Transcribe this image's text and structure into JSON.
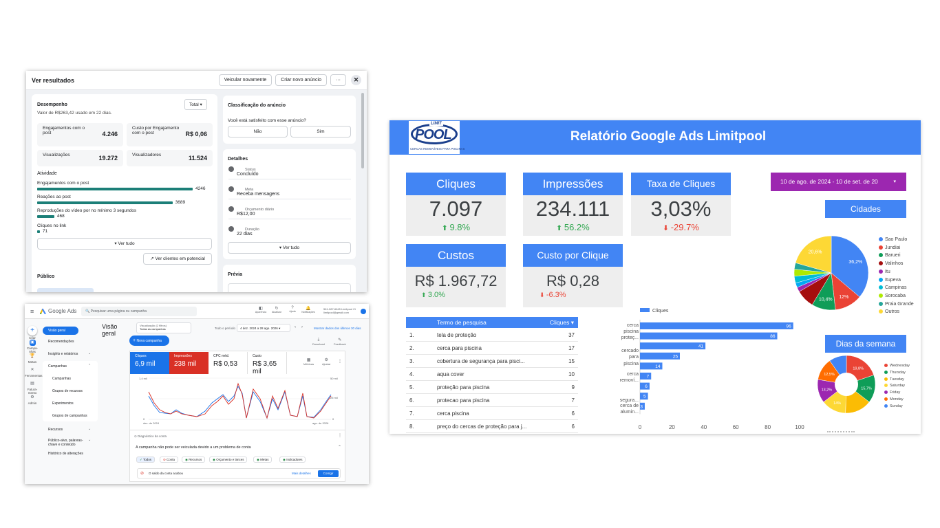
{
  "meta_panel": {
    "title": "Ver resultados",
    "buttons": {
      "run_again": "Veicular novamente",
      "create_ad": "Criar novo anúncio",
      "more": "···",
      "close": "✕"
    },
    "performance": {
      "title": "Desempenho",
      "subtitle": "Valor de R$263,42 usado em 22 dias.",
      "dropdown": "Total",
      "metrics": [
        {
          "label": "Engajamentos com o post",
          "value": "4.246"
        },
        {
          "label": "Custo por Engajamento com o post",
          "value": "R$ 0,06"
        },
        {
          "label": "Visualizações",
          "value": "19.272"
        },
        {
          "label": "Visualizadores",
          "value": "11.524"
        }
      ],
      "activity_title": "Atividade",
      "activity": [
        {
          "label": "Engajamentos com o post",
          "value": "4246",
          "frac": 1.0
        },
        {
          "label": "Reações ao post",
          "value": "3689",
          "frac": 0.87
        },
        {
          "label": "Reproduções do vídeo por no mínimo 3 segundos",
          "value": "468",
          "frac": 0.11
        },
        {
          "label": "Cliques no link",
          "value": "71",
          "frac": 0.017
        }
      ],
      "see_all": "Ver tudo",
      "potential_clients": "Ver clientes em potencial",
      "audience_title": "Público"
    },
    "classification": {
      "title": "Classificação do anúncio",
      "question": "Você está satisfeito com esse anúncio?",
      "no": "Não",
      "yes": "Sim"
    },
    "details": {
      "title": "Detalhes",
      "rows": [
        {
          "label": "Status",
          "value": "Concluído"
        },
        {
          "label": "Meta",
          "value": "Receba mensagens"
        },
        {
          "label": "Orçamento diário",
          "value": "R$12,00"
        },
        {
          "label": "Duração",
          "value": "22 dias"
        }
      ],
      "see_all": "Ver tudo",
      "preview_title": "Prévia"
    }
  },
  "gads_panel": {
    "app_name": "Google Ads",
    "search_placeholder": "Pesquisar uma página ou campanha",
    "top_icons": [
      "Aparência",
      "Atualizar",
      "Ajuda",
      "Notificações"
    ],
    "account": "561-087-6645 Limitpool Ci limitpool@gmail.com",
    "nav": [
      {
        "label": "Criar",
        "icon": "plus-icon"
      },
      {
        "label": "Campa-nhas",
        "icon": "campaign-icon"
      },
      {
        "label": "Metas",
        "icon": "trophy-icon"
      },
      {
        "label": "Ferramentas",
        "icon": "tools-icon"
      },
      {
        "label": "Fatura-mento",
        "icon": "billing-icon"
      },
      {
        "label": "Admin",
        "icon": "admin-icon"
      }
    ],
    "sidebar": [
      "Visão geral",
      "Recomendações",
      "Insights e relatórios",
      "Campanhas",
      "Campanhas",
      "Grupos de recursos",
      "Experimentos",
      "Grupos de campanhas",
      "Recursos",
      "Público-alvo, palavras-chave e conteúdo",
      "Histórico de alterações"
    ],
    "header": {
      "title": "Visão geral",
      "view_label": "Visualização (2 filtros)",
      "view_value": "Todas as campanhas",
      "period_label": "Todo o período",
      "period": "4 dez. 2024 a 28 ago. 2026",
      "show_last": "Mostrar dados dos últimos 30 dias",
      "new_campaign": "Nova campanha",
      "download": "Download",
      "feedback": "Feedback"
    },
    "metrics": [
      {
        "label": "Cliques",
        "value": "6,9 mil",
        "color": "#1a73e8"
      },
      {
        "label": "Impressões",
        "value": "238 mil",
        "color": "#d93025"
      },
      {
        "label": "CPC méd.",
        "value": "R$ 0,53",
        "color": "#ffffff"
      },
      {
        "label": "Custo",
        "value": "R$ 3,65 mil",
        "color": "#ffffff"
      }
    ],
    "metric_actions": [
      "Métricas",
      "Ajustar"
    ],
    "chart_axes": {
      "left_top": "1,4 mil",
      "left_bottom": "0",
      "right_top": "50 mil",
      "right_mid": "25 mil",
      "right_bottom": "0",
      "x_start": "dez. de 2024",
      "x_end": "ago. de 2026"
    },
    "diag": {
      "title": "Diagnóstico da conta",
      "message": "A campanha não pode ser veiculada devido a um problema de conta",
      "chips": [
        "Todos",
        "Conta",
        "Recursos",
        "Orçamento e lances",
        "Metas",
        "Indicadores"
      ],
      "alert": "O saldo da conta acabou",
      "more": "Mais detalhes",
      "fix": "Corrigir"
    }
  },
  "report": {
    "logo_word": "POOL",
    "logo_top": "LIMIT",
    "logo_tag": "CERCAS REMOVÍVEIS PARA PISCINAS",
    "title": "Relatório Google Ads Limitpool",
    "date_range": "10 de ago. de 2024 - 10 de set. de 20",
    "kpis": [
      {
        "title": "Cliques",
        "value": "7.097",
        "delta": "9.8%",
        "dir": "up"
      },
      {
        "title": "Impressões",
        "value": "234.111",
        "delta": "56.2%",
        "dir": "up"
      },
      {
        "title": "Taxa de Cliques",
        "value": "3,03%",
        "delta": "-29.7%",
        "dir": "down"
      },
      {
        "title": "Custos",
        "value": "R$ 1.967,72",
        "delta": "3.0%",
        "dir": "up"
      },
      {
        "title": "Custo por Clique",
        "value": "R$ 0,28",
        "delta": "-6.3%",
        "dir": "down"
      }
    ],
    "table": {
      "headers": [
        "Termo de pesquisa",
        "Cliques ▾"
      ],
      "rows": [
        {
          "n": "1.",
          "term": "tela de proteção",
          "clicks": "37"
        },
        {
          "n": "2.",
          "term": "cerca para piscina",
          "clicks": "17"
        },
        {
          "n": "3.",
          "term": "cobertura de segurança para pisci...",
          "clicks": "15"
        },
        {
          "n": "4.",
          "term": "aqua cover",
          "clicks": "10"
        },
        {
          "n": "5.",
          "term": "proteção para piscina",
          "clicks": "9"
        },
        {
          "n": "6.",
          "term": "protecao para piscina",
          "clicks": "7"
        },
        {
          "n": "7.",
          "term": "cerca piscina",
          "clicks": "6"
        },
        {
          "n": "8.",
          "term": "preço do cercas de proteção para j...",
          "clicks": "6"
        }
      ]
    },
    "cities_title": "Cidades",
    "weekdays_title": "Dias da semana"
  },
  "chart_data": [
    {
      "type": "bar",
      "orientation": "horizontal",
      "legend": [
        "Cliques"
      ],
      "categories": [
        "cerca piscina",
        "proteç...",
        "cercado para",
        "piscina",
        "cerca removí...",
        "",
        "segura...",
        "cerca de alumin...",
        ""
      ],
      "values": [
        96,
        86,
        41,
        25,
        14,
        7,
        6,
        5,
        3
      ],
      "xlim": [
        0,
        100
      ],
      "xticks": [
        "0",
        "20",
        "40",
        "60",
        "80",
        "100"
      ]
    },
    {
      "type": "pie",
      "title": "Cidades",
      "labels": [
        "Sao Paulo",
        "Jundiai",
        "Barueri",
        "Valinhos",
        "Itu",
        "Itupeva",
        "Campinas",
        "Sorocaba",
        "Praia Grande",
        "Outros"
      ],
      "values": [
        36.2,
        12,
        10.4,
        8,
        2,
        2,
        3,
        3,
        2.8,
        20.6
      ],
      "shown_labels": [
        "36,2%",
        "12%",
        "10,4%",
        "",
        "",
        "",
        "",
        "",
        "",
        "20,6%"
      ],
      "colors": [
        "#4285f4",
        "#ea4335",
        "#0f9d58",
        "#a50e0e",
        "#9c27b0",
        "#03a9f4",
        "#00bcd4",
        "#aeea00",
        "#26a69a",
        "#fdd835"
      ]
    },
    {
      "type": "pie",
      "donut": true,
      "title": "Dias da semana",
      "labels": [
        "Wednesday",
        "Thursday",
        "Tuesday",
        "Saturday",
        "Friday",
        "Monday",
        "Sunday"
      ],
      "values": [
        19.8,
        15.7,
        15,
        14,
        13.2,
        12.5,
        9.8
      ],
      "shown_labels": [
        "19,8%",
        "15,7%",
        "",
        "14%",
        "13,2%",
        "12,5%",
        ""
      ],
      "colors": [
        "#ea4335",
        "#0f9d58",
        "#fbbc04",
        "#fdd835",
        "#9c27b0",
        "#ff6d00",
        "#4285f4"
      ]
    }
  ]
}
